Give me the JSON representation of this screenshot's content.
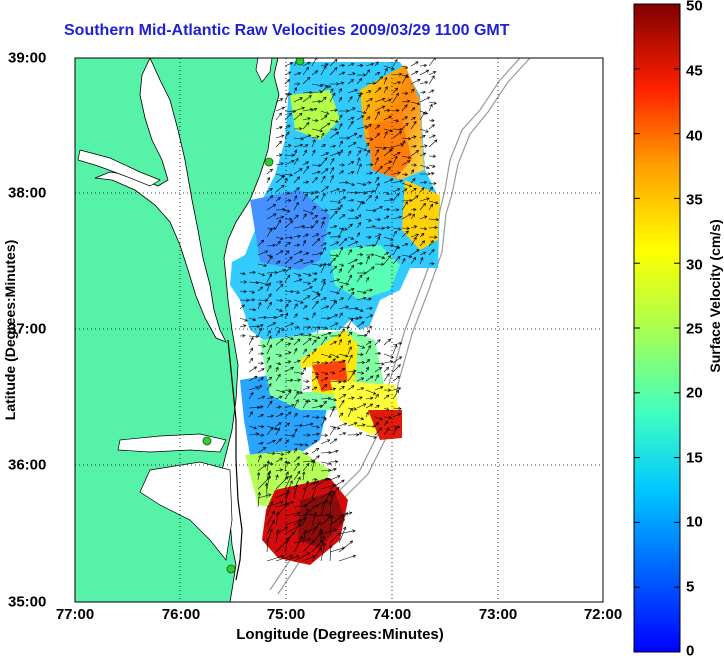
{
  "title": "Southern Mid-Atlantic Raw Velocities 2009/03/29 1100 GMT",
  "x_axis": {
    "label": "Longitude (Degrees:Minutes)",
    "ticks": [
      "77:00",
      "76:00",
      "75:00",
      "74:00",
      "73:00",
      "72:00"
    ],
    "range_deg_west": [
      77,
      72
    ]
  },
  "y_axis": {
    "label": "Latitude (Degrees:Minutes)",
    "ticks": [
      "39:00",
      "38:00",
      "37:00",
      "36:00",
      "35:00"
    ],
    "range_deg_north": [
      35,
      39
    ]
  },
  "colorbar": {
    "label": "Surface Velocity (cm/s)",
    "ticks": [
      "50",
      "45",
      "40",
      "35",
      "30",
      "25",
      "20",
      "15",
      "10",
      "5",
      "0"
    ],
    "range": [
      0,
      50
    ],
    "colormap": "jet"
  },
  "colors": {
    "title": "#1f1fd6",
    "land": "#55f2a8",
    "coastline": "#000000",
    "bathymetry": "#9a9a9a",
    "station_marker": "#33cc33",
    "grid": "#000000"
  },
  "map_layers": {
    "velocity_field": "colored surface current speed with black vector arrows",
    "grid": "dotted",
    "stations": 4
  }
}
